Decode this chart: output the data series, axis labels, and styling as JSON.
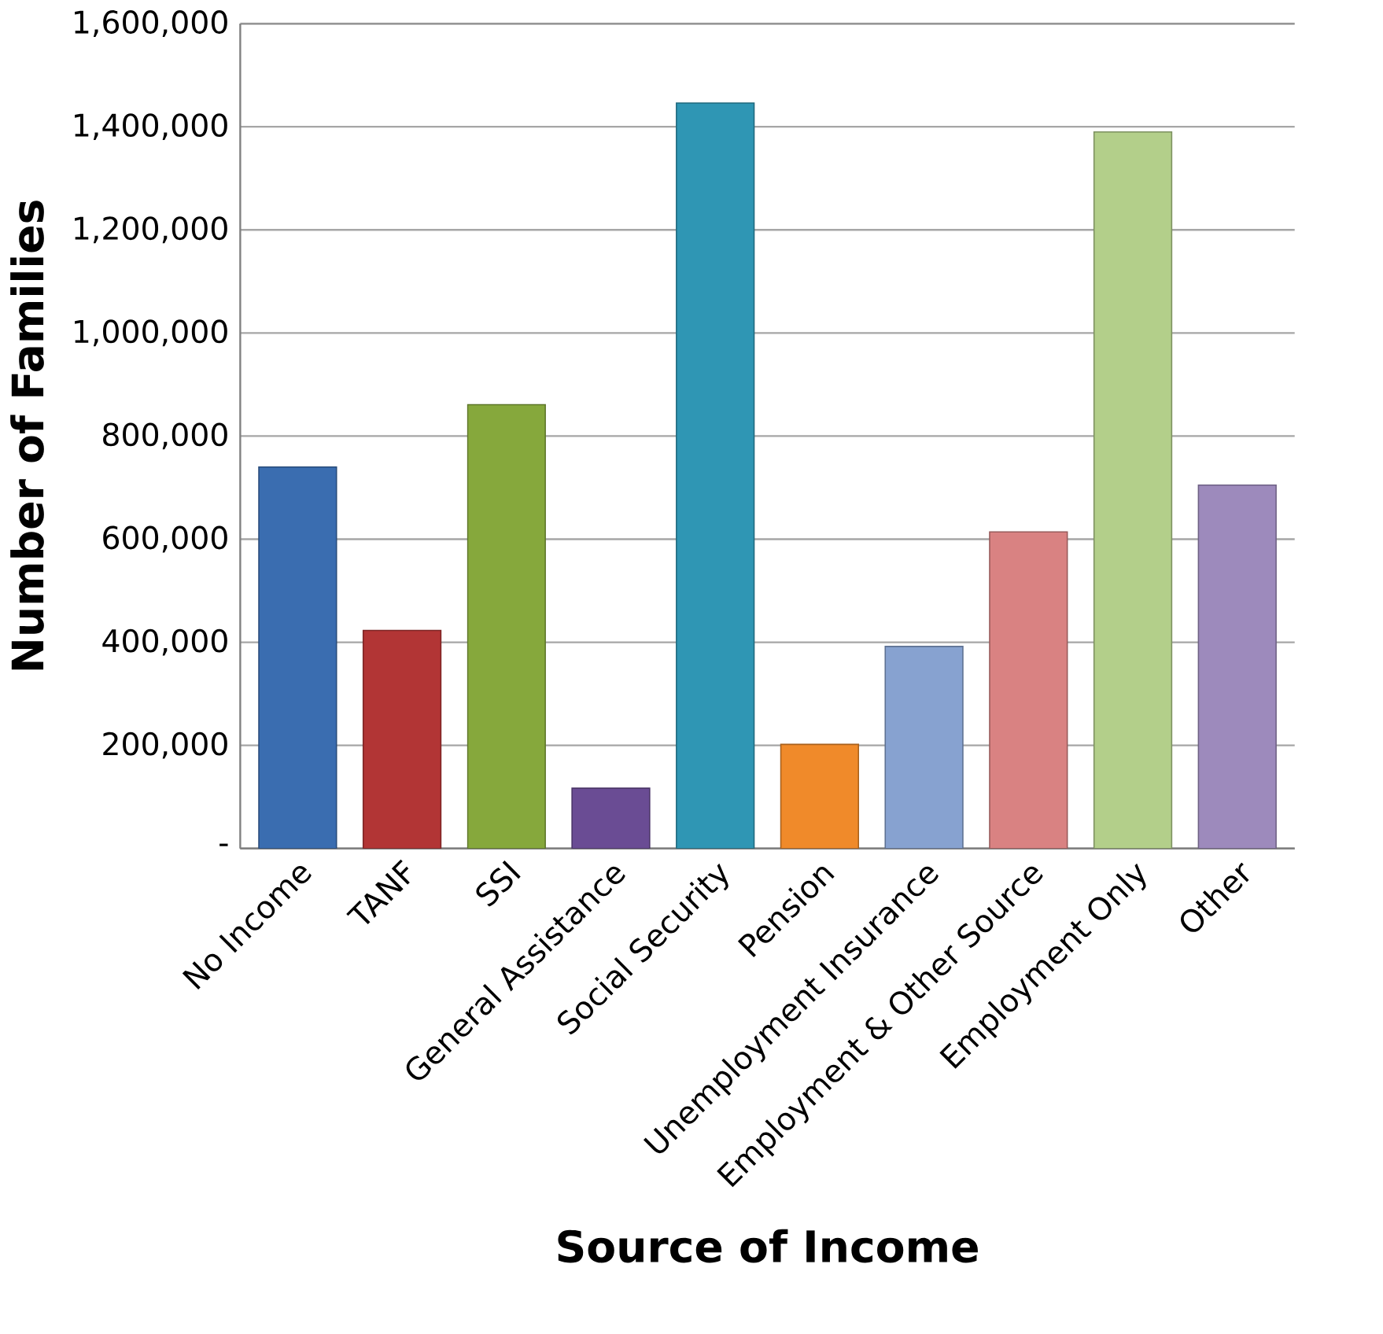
{
  "chart_data": {
    "type": "bar",
    "xlabel": "Source of Income",
    "ylabel": "Number of Families",
    "categories": [
      "No Income",
      "TANF",
      "SSI",
      "General Assistance",
      "Social Security",
      "Pension",
      "Unemployment Insurance",
      "Employment & Other Source",
      "Employment Only",
      "Other"
    ],
    "values": [
      740000,
      423000,
      861000,
      117000,
      1446000,
      202000,
      392000,
      614000,
      1390000,
      705000
    ],
    "colors": [
      "#3a6db0",
      "#b23535",
      "#86a83c",
      "#6a4c94",
      "#2f96b4",
      "#f08a2a",
      "#87a2d0",
      "#d98282",
      "#b3cf8a",
      "#9d8abc"
    ],
    "ylim": [
      0,
      1600000
    ],
    "yticks": [
      {
        "value": 0,
        "label": "-"
      },
      {
        "value": 200000,
        "label": "200,000"
      },
      {
        "value": 400000,
        "label": "400,000"
      },
      {
        "value": 600000,
        "label": "600,000"
      },
      {
        "value": 800000,
        "label": "800,000"
      },
      {
        "value": 1000000,
        "label": "1,000,000"
      },
      {
        "value": 1200000,
        "label": "1,200,000"
      },
      {
        "value": 1400000,
        "label": "1,400,000"
      },
      {
        "value": 1600000,
        "label": "1,600,000"
      }
    ],
    "grid": "y"
  }
}
